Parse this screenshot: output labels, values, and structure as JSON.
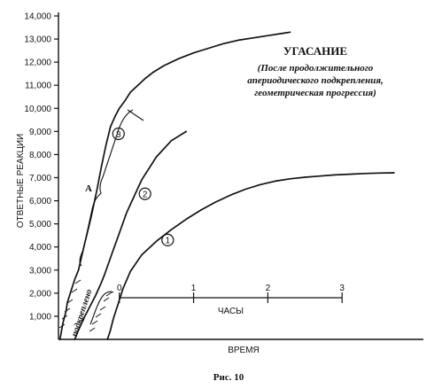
{
  "chart_data": {
    "type": "line",
    "title": "УГАСАНИЕ",
    "subtitle_lines": [
      "(После продолжительного",
      "апериодического подкрепления,",
      "геометрическая прогрессия)"
    ],
    "ylabel": "ОТВЕТНЫЕ РЕАКЦИИ",
    "xlabel": "ВРЕМЯ",
    "ylim": [
      0,
      14000
    ],
    "y_ticks": [
      1000,
      2000,
      3000,
      4000,
      5000,
      6000,
      7000,
      8000,
      9000,
      10000,
      11000,
      12000,
      13000,
      14000
    ],
    "y_tick_labels": [
      "1,000",
      "2,000",
      "3,000",
      "4,000",
      "5,000",
      "6,000",
      "7,000",
      "8,000",
      "9,000",
      "10,000",
      "11,000",
      "12,000",
      "13,000",
      "14,000"
    ],
    "x_unit": "hours",
    "xlim": [
      -0.82,
      4.0
    ],
    "time_scale": {
      "ticks": [
        0,
        1,
        2,
        3
      ],
      "tick_labels": [
        "0",
        "1",
        "2",
        "3"
      ],
      "label": "ЧАСЫ"
    },
    "series": [
      {
        "name": "1",
        "x": [
          -0.16,
          -0.12,
          -0.08,
          -0.02,
          0.05,
          0.15,
          0.3,
          0.5,
          0.7,
          0.9,
          1.1,
          1.3,
          1.5,
          1.7,
          1.9,
          2.1,
          2.3,
          2.5,
          2.7,
          2.9,
          3.1,
          3.3,
          3.5,
          3.7
        ],
        "y": [
          0,
          400,
          900,
          1500,
          2200,
          2950,
          3650,
          4250,
          4750,
          5200,
          5600,
          5950,
          6250,
          6500,
          6700,
          6850,
          6950,
          7020,
          7070,
          7120,
          7150,
          7180,
          7200,
          7210
        ]
      },
      {
        "name": "2",
        "x": [
          -0.6,
          -0.55,
          -0.48,
          -0.4,
          -0.32,
          -0.25,
          -0.2,
          -0.1,
          0.0,
          0.1,
          0.2,
          0.3,
          0.5,
          0.7,
          0.9
        ],
        "y": [
          0,
          400,
          900,
          1400,
          1900,
          2400,
          2800,
          3700,
          4600,
          5500,
          6200,
          6900,
          7900,
          8600,
          9000
        ]
      },
      {
        "name": "3",
        "x": [
          -0.8,
          -0.76,
          -0.72,
          -0.7,
          -0.65,
          -0.6,
          -0.55,
          -0.47,
          -0.38,
          -0.3,
          -0.24,
          -0.18,
          -0.12,
          -0.05,
          0.0,
          0.08,
          0.15,
          0.25,
          0.35,
          0.45,
          0.6,
          0.8,
          1.0,
          1.2,
          1.4,
          1.6,
          1.8,
          2.0,
          2.2,
          2.3
        ],
        "y": [
          0,
          700,
          1200,
          1600,
          2100,
          2600,
          3000,
          4100,
          5300,
          6500,
          7500,
          8400,
          9200,
          9700,
          10000,
          10350,
          10700,
          11000,
          11300,
          11550,
          11850,
          12150,
          12400,
          12600,
          12800,
          12950,
          13050,
          13150,
          13250,
          13300
        ]
      }
    ],
    "annotations": {
      "A": "А",
      "reinforced": "подкреплено"
    },
    "caption": "Рис. 10"
  }
}
